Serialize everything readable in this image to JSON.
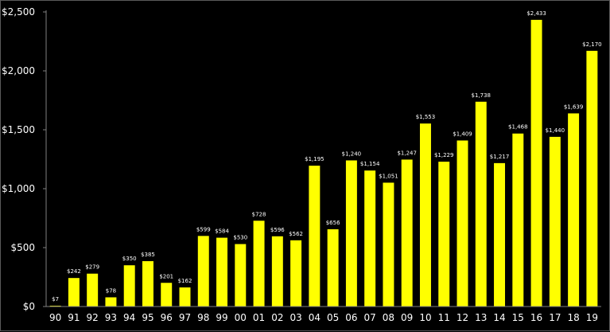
{
  "chart_data": {
    "type": "bar",
    "categories": [
      "90",
      "91",
      "92",
      "93",
      "94",
      "95",
      "96",
      "97",
      "98",
      "99",
      "00",
      "01",
      "02",
      "03",
      "04",
      "05",
      "06",
      "07",
      "08",
      "09",
      "10",
      "11",
      "12",
      "13",
      "14",
      "15",
      "16",
      "17",
      "18",
      "19"
    ],
    "values": [
      7,
      242,
      279,
      78,
      350,
      385,
      201,
      162,
      599,
      584,
      530,
      728,
      596,
      562,
      1195,
      656,
      1240,
      1154,
      1051,
      1247,
      1553,
      1229,
      1409,
      1738,
      1217,
      1468,
      2433,
      1440,
      1639,
      2170
    ],
    "value_labels": [
      "$7",
      "$242",
      "$279",
      "$78",
      "$350",
      "$385",
      "$201",
      "$162",
      "$599",
      "$584",
      "$530",
      "$728",
      "$596",
      "$562",
      "$1,195",
      "$656",
      "$1,240",
      "$1,154",
      "$1,051",
      "$1,247",
      "$1,553",
      "$1,229",
      "$1,409",
      "$1,738",
      "$1,217",
      "$1,468",
      "$2,433",
      "$1,440",
      "$1,639",
      "$2,170"
    ],
    "y_ticks": [
      0,
      500,
      1000,
      1500,
      2000,
      2500
    ],
    "y_tick_labels": [
      "$0",
      "$500",
      "$1,000",
      "$1,500",
      "$2,000",
      "$2,500"
    ],
    "ylim": [
      0,
      2500
    ],
    "grid": false,
    "colors": {
      "background": "#000000",
      "bar": "#ffff00",
      "text": "#ffffff",
      "axis": "#808080"
    }
  }
}
